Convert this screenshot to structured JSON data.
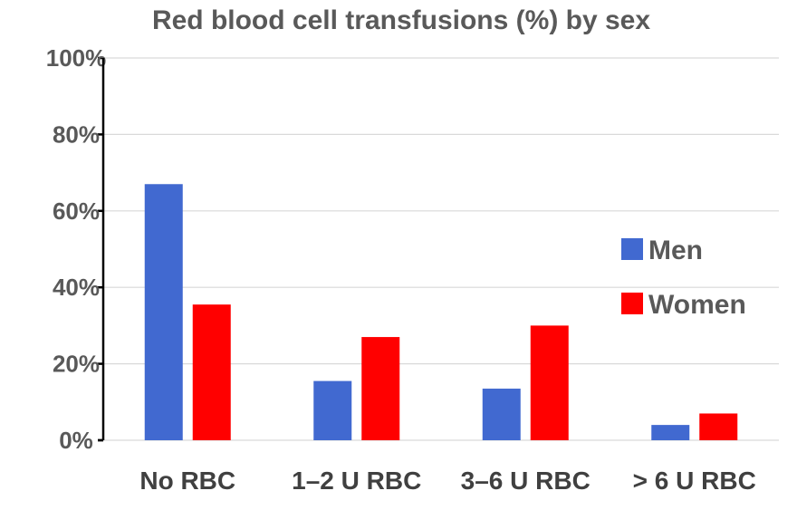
{
  "chart_data": {
    "type": "bar",
    "title": "Red blood cell transfusions (%) by sex",
    "xlabel": "",
    "ylabel": "",
    "categories": [
      "No RBC",
      "1–2 U RBC",
      "3–6 U RBC",
      "> 6 U RBC"
    ],
    "series": [
      {
        "name": "Men",
        "values": [
          67,
          15.5,
          13.5,
          4
        ],
        "color": "#4169d0"
      },
      {
        "name": "Women",
        "values": [
          35.5,
          27,
          30,
          7
        ],
        "color": "#ff0000"
      }
    ],
    "ylim": [
      0,
      100
    ],
    "yticks": [
      0,
      20,
      40,
      60,
      80,
      100
    ],
    "ytick_labels": [
      "0%",
      "20%",
      "40%",
      "60%",
      "80%",
      "100%"
    ],
    "grid": true,
    "legend_position": "right"
  }
}
